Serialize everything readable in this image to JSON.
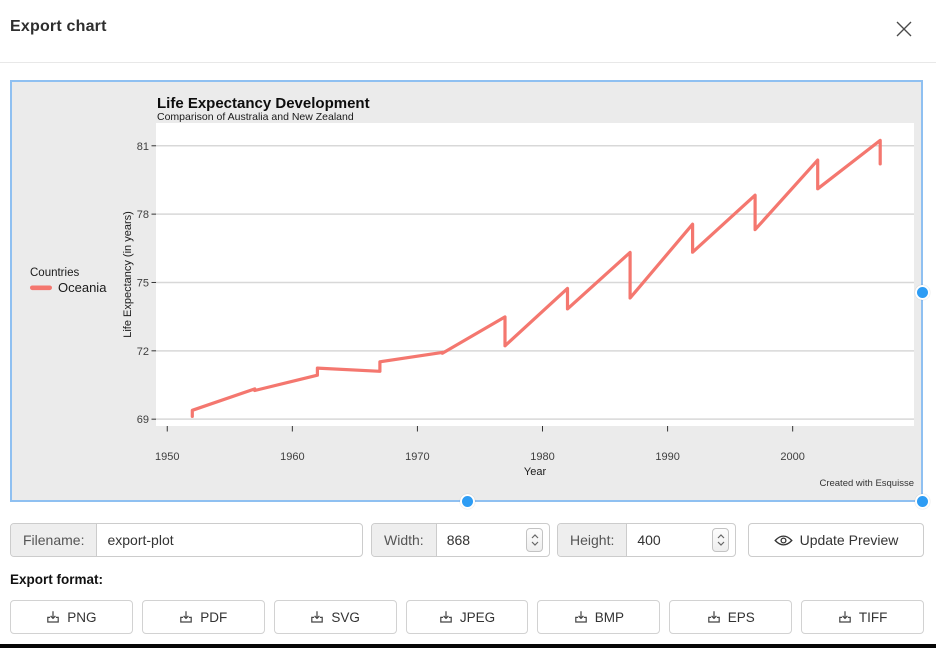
{
  "modal": {
    "title": "Export chart"
  },
  "chart_data": {
    "type": "line",
    "title": "Life Expectancy Development",
    "subtitle": "Comparison of Australia and New Zealand",
    "xlabel": "Year",
    "ylabel": "Life Expectancy (in years)",
    "caption": "Created with Esquisse",
    "legend": {
      "title": "Countries",
      "position": "left",
      "entries": [
        {
          "label": "Oceania",
          "color": "#f4776f"
        }
      ]
    },
    "x_ticks": [
      1950,
      1960,
      1970,
      1980,
      1990,
      2000
    ],
    "y_ticks": [
      69,
      72,
      75,
      78,
      81
    ],
    "xlim": [
      1949.1,
      2009.7
    ],
    "ylim": [
      68.7,
      82.0
    ],
    "grid": "horizontal-major",
    "panel_bg": "#ffffff",
    "outer_bg": "#ebebeb",
    "series": [
      {
        "name": "Oceania",
        "color": "#f4776f",
        "points": [
          [
            1952,
            69.12
          ],
          [
            1952,
            69.39
          ],
          [
            1957,
            70.33
          ],
          [
            1957,
            70.26
          ],
          [
            1962,
            70.93
          ],
          [
            1962,
            71.24
          ],
          [
            1967,
            71.1
          ],
          [
            1967,
            71.52
          ],
          [
            1972,
            71.93
          ],
          [
            1972,
            71.89
          ],
          [
            1977,
            73.49
          ],
          [
            1977,
            72.22
          ],
          [
            1982,
            74.74
          ],
          [
            1982,
            73.84
          ],
          [
            1987,
            76.32
          ],
          [
            1987,
            74.32
          ],
          [
            1992,
            77.56
          ],
          [
            1992,
            76.33
          ],
          [
            1997,
            78.83
          ],
          [
            1997,
            77.32
          ],
          [
            2002,
            80.37
          ],
          [
            2002,
            79.11
          ],
          [
            2007,
            81.235
          ],
          [
            2007,
            80.204
          ]
        ]
      }
    ]
  },
  "form": {
    "filename": {
      "label": "Filename:",
      "value": "export-plot"
    },
    "width": {
      "label": "Width:",
      "value": "868"
    },
    "height": {
      "label": "Height:",
      "value": "400"
    },
    "update_preview": {
      "label": "Update Preview",
      "icon": "eye-icon"
    }
  },
  "export": {
    "label": "Export format:",
    "icon": "download-icon",
    "formats": [
      "PNG",
      "PDF",
      "SVG",
      "JPEG",
      "BMP",
      "EPS",
      "TIFF"
    ]
  },
  "colors": {
    "accent_blue": "#2d9cf4",
    "preview_border": "#8fc0f1",
    "line": "#f4776f",
    "gridline": "#d8d8d8"
  }
}
